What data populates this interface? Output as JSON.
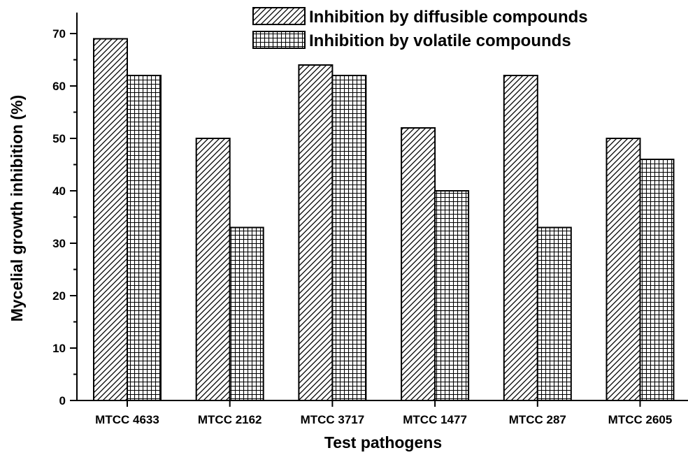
{
  "chart_data": {
    "type": "bar",
    "categories": [
      "MTCC 4633",
      "MTCC 2162",
      "MTCC 3717",
      "MTCC 1477",
      "MTCC 287",
      "MTCC 2605"
    ],
    "series": [
      {
        "name": "Inhibition by diffusible compounds",
        "pattern": "diagonal-hatch",
        "values": [
          69,
          50,
          64,
          52,
          62,
          50
        ]
      },
      {
        "name": "Inhibition by volatile compounds",
        "pattern": "grid-hatch",
        "values": [
          62,
          33,
          62,
          40,
          33,
          46
        ]
      }
    ],
    "xlabel": "Test pathogens",
    "ylabel": "Mycelial growth inhibition (%)",
    "ylim": [
      0,
      75
    ],
    "yticks": [
      0,
      10,
      20,
      30,
      40,
      50,
      60,
      70
    ],
    "grid": false,
    "legend_position": "top-right",
    "colors": {
      "bar_stroke": "#000000",
      "background": "#ffffff"
    }
  }
}
